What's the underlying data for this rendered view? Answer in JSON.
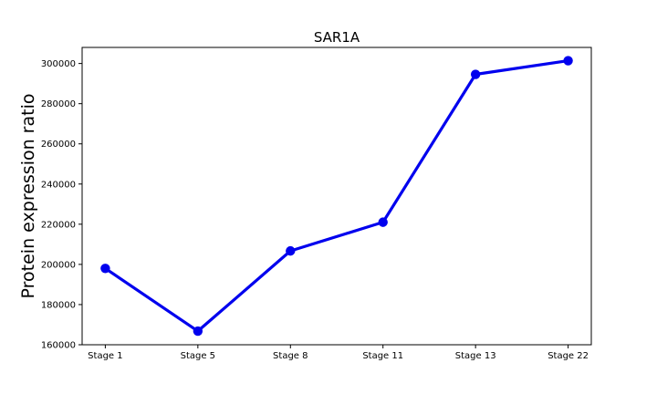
{
  "chart_data": {
    "type": "line",
    "title": "SAR1A",
    "xlabel": "",
    "ylabel": "Protein expression ratio",
    "categories": [
      "Stage 1",
      "Stage 5",
      "Stage 8",
      "Stage 11",
      "Stage 13",
      "Stage 22"
    ],
    "values": [
      198000,
      166800,
      206700,
      221000,
      294600,
      301400
    ],
    "ylim": [
      160000,
      308000
    ],
    "yticks": [
      160000,
      180000,
      200000,
      220000,
      240000,
      260000,
      280000,
      300000
    ],
    "grid": false,
    "legend": "none",
    "line_color": "#0000ee"
  }
}
